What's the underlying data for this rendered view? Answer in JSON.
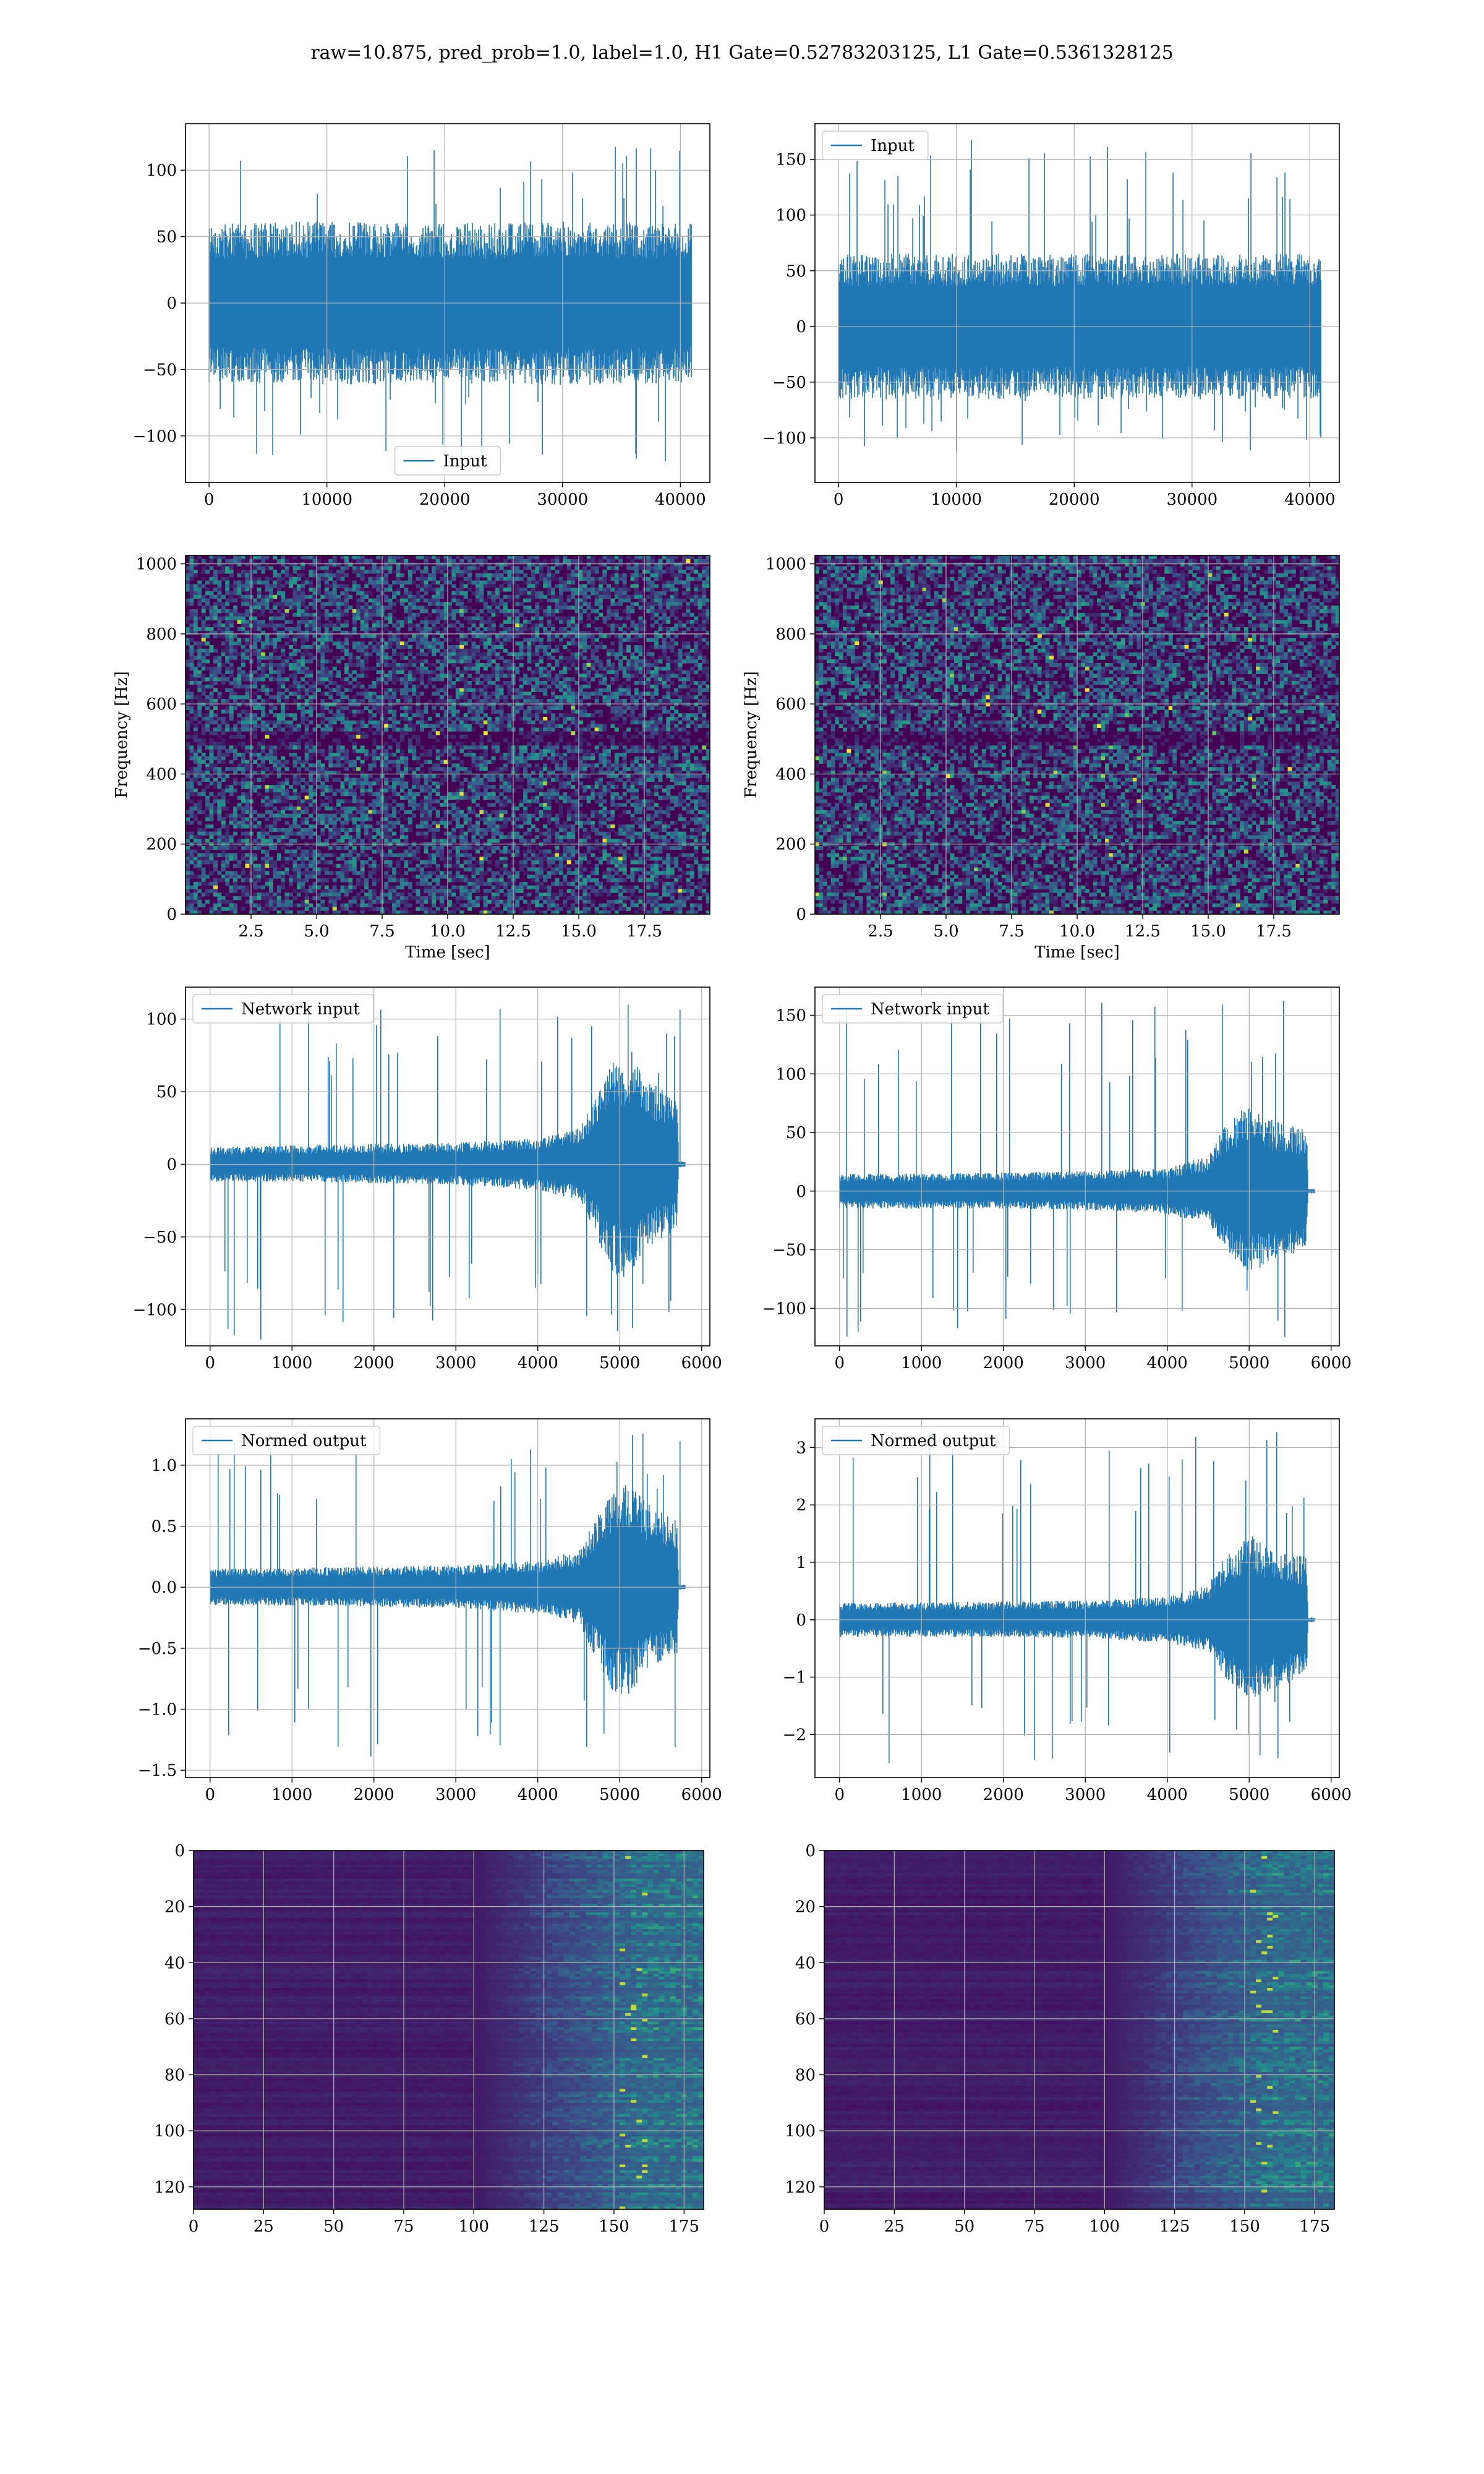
{
  "figure_title": "raw=10.875, pred_prob=1.0, label=1.0, H1 Gate=0.52783203125, L1 Gate=0.5361328125",
  "colors": {
    "line": "#1f77b4",
    "grid": "#b0b0b0",
    "viridis_low": "#440154",
    "viridis_mid": "#21918c",
    "viridis_high": "#fde725"
  },
  "chart_data": [
    {
      "type": "line",
      "panel": "row1-left",
      "xlim": [
        -2000,
        42500
      ],
      "ylim": [
        -135,
        135
      ],
      "xticks": [
        0,
        10000,
        20000,
        30000,
        40000
      ],
      "xtick_labels": [
        "0",
        "10000",
        "20000",
        "30000",
        "40000"
      ],
      "yticks": [
        -100,
        -50,
        0,
        50,
        100
      ],
      "ytick_labels": [
        "−100",
        "−50",
        "0",
        "50",
        "100"
      ],
      "legend": {
        "label": "Input",
        "loc": "lower center"
      },
      "series": [
        {
          "name": "Input",
          "x_range": [
            0,
            40960
          ],
          "envelope": [
            {
              "x": 0,
              "lo": -60,
              "hi": 60
            },
            {
              "x": 10000,
              "lo": -62,
              "hi": 62
            },
            {
              "x": 20000,
              "lo": -60,
              "hi": 60
            },
            {
              "x": 30000,
              "lo": -62,
              "hi": 62
            },
            {
              "x": 40960,
              "lo": -60,
              "hi": 60
            }
          ],
          "peak_range": [
            -125,
            120
          ]
        }
      ]
    },
    {
      "type": "line",
      "panel": "row1-right",
      "xlim": [
        -2000,
        42500
      ],
      "ylim": [
        -140,
        182
      ],
      "xticks": [
        0,
        10000,
        20000,
        30000,
        40000
      ],
      "xtick_labels": [
        "0",
        "10000",
        "20000",
        "30000",
        "40000"
      ],
      "yticks": [
        -100,
        -50,
        0,
        50,
        100,
        150
      ],
      "ytick_labels": [
        "−100",
        "−50",
        "0",
        "50",
        "100",
        "150"
      ],
      "legend": {
        "label": "Input",
        "loc": "upper left"
      },
      "series": [
        {
          "name": "Input",
          "x_range": [
            0,
            40960
          ],
          "envelope": [
            {
              "x": 0,
              "lo": -65,
              "hi": 65
            },
            {
              "x": 10000,
              "lo": -66,
              "hi": 66
            },
            {
              "x": 20000,
              "lo": -65,
              "hi": 65
            },
            {
              "x": 30000,
              "lo": -66,
              "hi": 66
            },
            {
              "x": 40960,
              "lo": -65,
              "hi": 65
            }
          ],
          "peak_range": [
            -115,
            168
          ]
        }
      ]
    },
    {
      "type": "heatmap",
      "panel": "row2-left",
      "xlim": [
        0,
        20
      ],
      "ylim": [
        0,
        1024
      ],
      "xticks": [
        2.5,
        5,
        7.5,
        10,
        12.5,
        15,
        17.5
      ],
      "xtick_labels": [
        "2.5",
        "5.0",
        "7.5",
        "10.0",
        "12.5",
        "15.0",
        "17.5"
      ],
      "yticks": [
        0,
        200,
        400,
        600,
        800,
        1000
      ],
      "ytick_labels": [
        "0",
        "200",
        "400",
        "600",
        "800",
        "1000"
      ],
      "xlabel": "Time [sec]",
      "ylabel": "Frequency [Hz]",
      "pattern": "spectrogram",
      "dark_band": 500
    },
    {
      "type": "heatmap",
      "panel": "row2-right",
      "xlim": [
        0,
        20
      ],
      "ylim": [
        0,
        1024
      ],
      "xticks": [
        2.5,
        5,
        7.5,
        10,
        12.5,
        15,
        17.5
      ],
      "xtick_labels": [
        "2.5",
        "5.0",
        "7.5",
        "10.0",
        "12.5",
        "15.0",
        "17.5"
      ],
      "yticks": [
        0,
        200,
        400,
        600,
        800,
        1000
      ],
      "ytick_labels": [
        "0",
        "200",
        "400",
        "600",
        "800",
        "1000"
      ],
      "xlabel": "Time [sec]",
      "ylabel": "Frequency [Hz]",
      "pattern": "spectrogram",
      "dark_band": 500
    },
    {
      "type": "line",
      "panel": "row3-left",
      "xlim": [
        -300,
        6100
      ],
      "ylim": [
        -125,
        122
      ],
      "xticks": [
        0,
        1000,
        2000,
        3000,
        4000,
        5000,
        6000
      ],
      "xtick_labels": [
        "0",
        "1000",
        "2000",
        "3000",
        "4000",
        "5000",
        "6000"
      ],
      "yticks": [
        -100,
        -50,
        0,
        50,
        100
      ],
      "ytick_labels": [
        "−100",
        "−50",
        "0",
        "50",
        "100"
      ],
      "legend": {
        "label": "Network input",
        "loc": "upper left"
      },
      "series": [
        {
          "name": "Network input",
          "x_range": [
            0,
            5800
          ],
          "envelope": [
            {
              "x": 0,
              "lo": -12,
              "hi": 12
            },
            {
              "x": 1000,
              "lo": -12,
              "hi": 13
            },
            {
              "x": 2000,
              "lo": -13,
              "hi": 14
            },
            {
              "x": 3000,
              "lo": -14,
              "hi": 15
            },
            {
              "x": 4000,
              "lo": -18,
              "hi": 18
            },
            {
              "x": 4500,
              "lo": -25,
              "hi": 25
            },
            {
              "x": 4650,
              "lo": -40,
              "hi": 40
            },
            {
              "x": 4900,
              "lo": -75,
              "hi": 70
            },
            {
              "x": 5100,
              "lo": -80,
              "hi": 75
            },
            {
              "x": 5400,
              "lo": -55,
              "hi": 55
            },
            {
              "x": 5700,
              "lo": -45,
              "hi": 48
            },
            {
              "x": 5720,
              "lo": -2,
              "hi": 2
            },
            {
              "x": 5800,
              "lo": -2,
              "hi": 2
            }
          ],
          "peak_range": [
            -122,
            110
          ]
        }
      ]
    },
    {
      "type": "line",
      "panel": "row3-right",
      "xlim": [
        -300,
        6100
      ],
      "ylim": [
        -132,
        174
      ],
      "xticks": [
        0,
        1000,
        2000,
        3000,
        4000,
        5000,
        6000
      ],
      "xtick_labels": [
        "0",
        "1000",
        "2000",
        "3000",
        "4000",
        "5000",
        "6000"
      ],
      "yticks": [
        -100,
        -50,
        0,
        50,
        100,
        150
      ],
      "ytick_labels": [
        "−100",
        "−50",
        "0",
        "50",
        "100",
        "150"
      ],
      "legend": {
        "label": "Network input",
        "loc": "upper left"
      },
      "series": [
        {
          "name": "Network input",
          "x_range": [
            0,
            5800
          ],
          "envelope": [
            {
              "x": 0,
              "lo": -15,
              "hi": 15
            },
            {
              "x": 1000,
              "lo": -15,
              "hi": 15
            },
            {
              "x": 2000,
              "lo": -15,
              "hi": 16
            },
            {
              "x": 3000,
              "lo": -16,
              "hi": 17
            },
            {
              "x": 4000,
              "lo": -20,
              "hi": 20
            },
            {
              "x": 4500,
              "lo": -28,
              "hi": 30
            },
            {
              "x": 4700,
              "lo": -50,
              "hi": 55
            },
            {
              "x": 5000,
              "lo": -70,
              "hi": 75
            },
            {
              "x": 5300,
              "lo": -60,
              "hi": 60
            },
            {
              "x": 5700,
              "lo": -50,
              "hi": 55
            },
            {
              "x": 5720,
              "lo": -2,
              "hi": 2
            },
            {
              "x": 5800,
              "lo": -2,
              "hi": 2
            }
          ],
          "peak_range": [
            -125,
            168
          ]
        }
      ]
    },
    {
      "type": "line",
      "panel": "row4-left",
      "xlim": [
        -300,
        6100
      ],
      "ylim": [
        -1.56,
        1.38
      ],
      "xticks": [
        0,
        1000,
        2000,
        3000,
        4000,
        5000,
        6000
      ],
      "xtick_labels": [
        "0",
        "1000",
        "2000",
        "3000",
        "4000",
        "5000",
        "6000"
      ],
      "yticks": [
        -1.5,
        -1.0,
        -0.5,
        0.0,
        0.5,
        1.0
      ],
      "ytick_labels": [
        "−1.5",
        "−1.0",
        "−0.5",
        "0.0",
        "0.5",
        "1.0"
      ],
      "legend": {
        "label": "Normed output",
        "loc": "upper left"
      },
      "series": [
        {
          "name": "Normed output",
          "x_range": [
            0,
            5800
          ],
          "envelope": [
            {
              "x": 0,
              "lo": -0.15,
              "hi": 0.15
            },
            {
              "x": 1000,
              "lo": -0.15,
              "hi": 0.16
            },
            {
              "x": 2000,
              "lo": -0.16,
              "hi": 0.17
            },
            {
              "x": 3000,
              "lo": -0.17,
              "hi": 0.18
            },
            {
              "x": 4000,
              "lo": -0.22,
              "hi": 0.22
            },
            {
              "x": 4500,
              "lo": -0.3,
              "hi": 0.3
            },
            {
              "x": 4650,
              "lo": -0.5,
              "hi": 0.5
            },
            {
              "x": 4900,
              "lo": -0.85,
              "hi": 0.8
            },
            {
              "x": 5100,
              "lo": -0.9,
              "hi": 0.85
            },
            {
              "x": 5400,
              "lo": -0.65,
              "hi": 0.65
            },
            {
              "x": 5700,
              "lo": -0.55,
              "hi": 0.55
            },
            {
              "x": 5720,
              "lo": -0.02,
              "hi": 0.02
            },
            {
              "x": 5800,
              "lo": -0.02,
              "hi": 0.02
            }
          ],
          "peak_range": [
            -1.4,
            1.28
          ]
        }
      ]
    },
    {
      "type": "line",
      "panel": "row4-right",
      "xlim": [
        -300,
        6100
      ],
      "ylim": [
        -2.75,
        3.5
      ],
      "xticks": [
        0,
        1000,
        2000,
        3000,
        4000,
        5000,
        6000
      ],
      "xtick_labels": [
        "0",
        "1000",
        "2000",
        "3000",
        "4000",
        "5000",
        "6000"
      ],
      "yticks": [
        -2,
        -1,
        0,
        1,
        2,
        3
      ],
      "ytick_labels": [
        "−2",
        "−1",
        "0",
        "1",
        "2",
        "3"
      ],
      "legend": {
        "label": "Normed output",
        "loc": "upper left"
      },
      "series": [
        {
          "name": "Normed output",
          "x_range": [
            0,
            5800
          ],
          "envelope": [
            {
              "x": 0,
              "lo": -0.3,
              "hi": 0.3
            },
            {
              "x": 1000,
              "lo": -0.3,
              "hi": 0.3
            },
            {
              "x": 2000,
              "lo": -0.3,
              "hi": 0.32
            },
            {
              "x": 3000,
              "lo": -0.32,
              "hi": 0.34
            },
            {
              "x": 4000,
              "lo": -0.4,
              "hi": 0.4
            },
            {
              "x": 4500,
              "lo": -0.55,
              "hi": 0.6
            },
            {
              "x": 4700,
              "lo": -1.0,
              "hi": 1.1
            },
            {
              "x": 5000,
              "lo": -1.4,
              "hi": 1.5
            },
            {
              "x": 5300,
              "lo": -1.2,
              "hi": 1.2
            },
            {
              "x": 5700,
              "lo": -1.0,
              "hi": 1.1
            },
            {
              "x": 5720,
              "lo": -0.04,
              "hi": 0.04
            },
            {
              "x": 5800,
              "lo": -0.04,
              "hi": 0.04
            }
          ],
          "peak_range": [
            -2.5,
            3.3
          ]
        }
      ]
    },
    {
      "type": "heatmap",
      "panel": "row5-left",
      "xlim": [
        0,
        182
      ],
      "ylim": [
        128,
        0
      ],
      "xticks": [
        0,
        25,
        50,
        75,
        100,
        125,
        150,
        175
      ],
      "xtick_labels": [
        "0",
        "25",
        "50",
        "75",
        "100",
        "125",
        "150",
        "175"
      ],
      "yticks": [
        0,
        20,
        40,
        60,
        80,
        100,
        120
      ],
      "ytick_labels": [
        "0",
        "20",
        "40",
        "60",
        "80",
        "100",
        "120"
      ],
      "pattern": "activation",
      "onset_x": 100
    },
    {
      "type": "heatmap",
      "panel": "row5-right",
      "xlim": [
        0,
        182
      ],
      "ylim": [
        128,
        0
      ],
      "xticks": [
        0,
        25,
        50,
        75,
        100,
        125,
        150,
        175
      ],
      "xtick_labels": [
        "0",
        "25",
        "50",
        "75",
        "100",
        "125",
        "150",
        "175"
      ],
      "yticks": [
        0,
        20,
        40,
        60,
        80,
        100,
        120
      ],
      "ytick_labels": [
        "0",
        "20",
        "40",
        "60",
        "80",
        "100",
        "120"
      ],
      "pattern": "activation",
      "onset_x": 100
    }
  ]
}
